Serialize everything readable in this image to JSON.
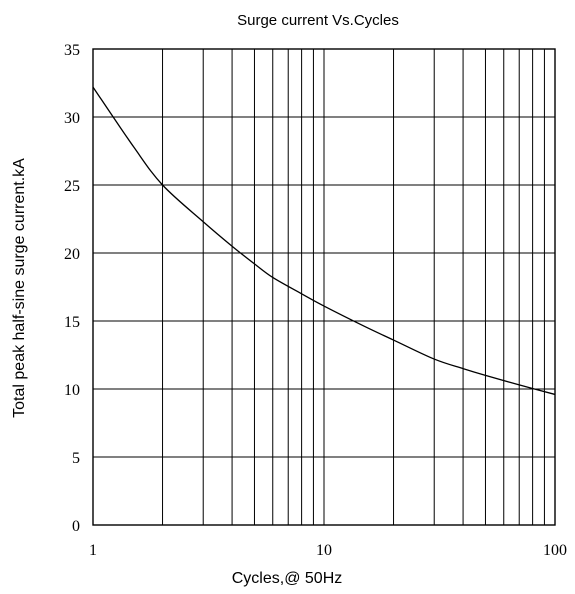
{
  "chart_data": {
    "type": "line",
    "title": "Surge current Vs.Cycles",
    "xlabel": "Cycles,@ 50Hz",
    "ylabel": "Total peak half-sine surge current.kA",
    "xscale": "log",
    "xlim": [
      1,
      100
    ],
    "ylim": [
      0,
      35
    ],
    "x_ticks": [
      "1",
      "10",
      "100"
    ],
    "y_ticks": [
      "0",
      "5",
      "10",
      "15",
      "20",
      "25",
      "30",
      "35"
    ],
    "grid": true,
    "series": [
      {
        "x": [
          1,
          1.5,
          2,
          3,
          4,
          5,
          6,
          8,
          10,
          15,
          20,
          30,
          40,
          50,
          70,
          100
        ],
        "y": [
          32.2,
          27.8,
          25.0,
          22.3,
          20.5,
          19.2,
          18.2,
          17.0,
          16.1,
          14.6,
          13.6,
          12.2,
          11.5,
          11.0,
          10.3,
          9.6
        ]
      }
    ]
  }
}
